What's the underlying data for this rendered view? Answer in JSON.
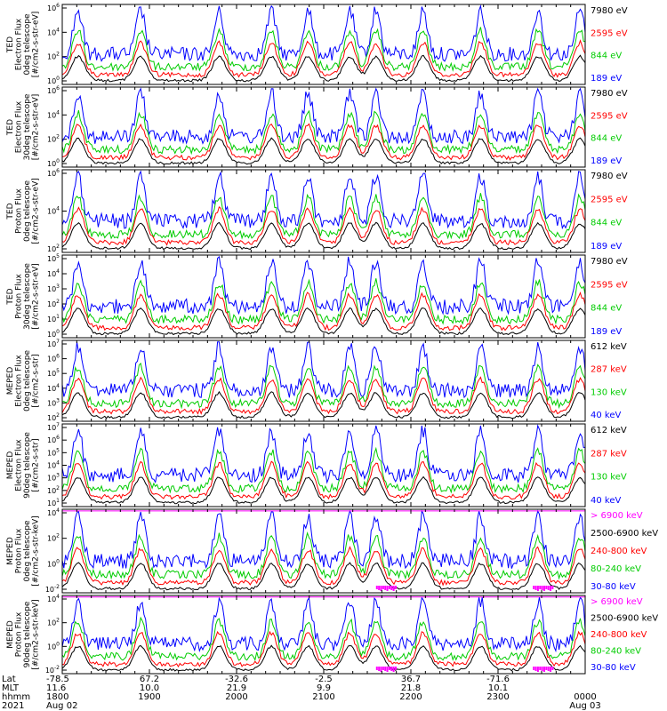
{
  "chart_data": [
    {
      "type": "line",
      "ylabel_lines": [
        "TED",
        "Electron Flux",
        "0deg telescope",
        "[#/cm2-s-str-eV]"
      ],
      "yscale": "log",
      "ytick_labels": [
        "10^6",
        "10^4",
        "10^2",
        "10^0"
      ],
      "legend": [
        {
          "label": "7980 eV",
          "color": "#000000"
        },
        {
          "label": "2595 eV",
          "color": "#ff0000"
        },
        {
          "label": "844 eV",
          "color": "#00cc00"
        },
        {
          "label": "189 eV",
          "color": "#0000ff"
        }
      ]
    },
    {
      "type": "line",
      "ylabel_lines": [
        "TED",
        "Electron Flux",
        "30deg telescope",
        "[#/cm2-s-str-eV]"
      ],
      "yscale": "log",
      "ytick_labels": [
        "10^6",
        "10^4",
        "10^2",
        "10^0"
      ],
      "legend": [
        {
          "label": "7980 eV",
          "color": "#000000"
        },
        {
          "label": "2595 eV",
          "color": "#ff0000"
        },
        {
          "label": "844 eV",
          "color": "#00cc00"
        },
        {
          "label": "189 eV",
          "color": "#0000ff"
        }
      ]
    },
    {
      "type": "line",
      "ylabel_lines": [
        "TED",
        "Proton Flux",
        "0deg telescope",
        "[#/cm2-s-str-eV]"
      ],
      "yscale": "log",
      "ytick_labels": [
        "10^6",
        "10^4",
        "10^2"
      ],
      "legend": [
        {
          "label": "7980 eV",
          "color": "#000000"
        },
        {
          "label": "2595 eV",
          "color": "#ff0000"
        },
        {
          "label": "844 eV",
          "color": "#00cc00"
        },
        {
          "label": "189 eV",
          "color": "#0000ff"
        }
      ]
    },
    {
      "type": "line",
      "ylabel_lines": [
        "TED",
        "Proton Flux",
        "30deg telescope",
        "[#/cm2-s-str-eV]"
      ],
      "yscale": "log",
      "ytick_labels": [
        "10^5",
        "10^4",
        "10^3",
        "10^2",
        "10^1",
        "10^0"
      ],
      "legend": [
        {
          "label": "7980 eV",
          "color": "#000000"
        },
        {
          "label": "2595 eV",
          "color": "#ff0000"
        },
        {
          "label": "844 eV",
          "color": "#00cc00"
        },
        {
          "label": "189 eV",
          "color": "#0000ff"
        }
      ]
    },
    {
      "type": "line",
      "ylabel_lines": [
        "MEPED",
        "Electron Flux",
        "0deg telescope",
        "[#/cm2-s-str]"
      ],
      "yscale": "log",
      "ytick_labels": [
        "10^7",
        "10^6",
        "10^5",
        "10^4",
        "10^3",
        "10^2"
      ],
      "legend": [
        {
          "label": "612 keV",
          "color": "#000000"
        },
        {
          "label": "287 keV",
          "color": "#ff0000"
        },
        {
          "label": "130 keV",
          "color": "#00cc00"
        },
        {
          "label": "40 keV",
          "color": "#0000ff"
        }
      ]
    },
    {
      "type": "line",
      "ylabel_lines": [
        "MEPED",
        "Electron Flux",
        "90deg telescope",
        "[#/cm2-s-str]"
      ],
      "yscale": "log",
      "ytick_labels": [
        "10^7",
        "10^6",
        "10^5",
        "10^4",
        "10^3",
        "10^2",
        "10^1"
      ],
      "legend": [
        {
          "label": "612 keV",
          "color": "#000000"
        },
        {
          "label": "287 keV",
          "color": "#ff0000"
        },
        {
          "label": "130 keV",
          "color": "#00cc00"
        },
        {
          "label": "40 keV",
          "color": "#0000ff"
        }
      ]
    },
    {
      "type": "line",
      "ylabel_lines": [
        "MEPED",
        "Proton Flux",
        "0deg telescope",
        "[#/cm2-s-str-keV]"
      ],
      "yscale": "log",
      "ytick_labels": [
        "10^4",
        "10^2",
        "10^0",
        "10^-2"
      ],
      "legend": [
        {
          "label": "> 6900 keV",
          "color": "#ff00ff"
        },
        {
          "label": "2500-6900 keV",
          "color": "#000000"
        },
        {
          "label": "240-800 keV",
          "color": "#ff0000"
        },
        {
          "label": "80-240 keV",
          "color": "#00cc00"
        },
        {
          "label": "30-80 keV",
          "color": "#0000ff"
        }
      ]
    },
    {
      "type": "line",
      "ylabel_lines": [
        "MEPED",
        "Proton Flux",
        "90deg telescope",
        "[#/cm2-s-str-keV]"
      ],
      "yscale": "log",
      "ytick_labels": [
        "10^4",
        "10^2",
        "10^0",
        "10^-2"
      ],
      "legend": [
        {
          "label": "> 6900 keV",
          "color": "#ff00ff"
        },
        {
          "label": "2500-6900 keV",
          "color": "#000000"
        },
        {
          "label": "240-800 keV",
          "color": "#ff0000"
        },
        {
          "label": "80-240 keV",
          "color": "#00cc00"
        },
        {
          "label": "30-80 keV",
          "color": "#0000ff"
        }
      ]
    }
  ],
  "footer": {
    "row_labels": [
      "Lat",
      "MLT",
      "hhmm",
      "2021"
    ],
    "columns": [
      {
        "lat": "-78.5",
        "mlt": "11.6",
        "hhmm": "1800",
        "date": "Aug 02"
      },
      {
        "lat": "67.2",
        "mlt": "10.0",
        "hhmm": "1900",
        "date": ""
      },
      {
        "lat": "-32.6",
        "mlt": "21.9",
        "hhmm": "2000",
        "date": ""
      },
      {
        "lat": "-2.5",
        "mlt": "9.9",
        "hhmm": "2100",
        "date": ""
      },
      {
        "lat": "36.7",
        "mlt": "21.8",
        "hhmm": "2200",
        "date": ""
      },
      {
        "lat": "-71.6",
        "mlt": "10.1",
        "hhmm": "2300",
        "date": ""
      },
      {
        "lat": "",
        "mlt": "",
        "hhmm": "0000",
        "date": "Aug 03"
      }
    ]
  },
  "colors": {
    "black": "#000000",
    "red": "#ff0000",
    "green": "#00cc00",
    "blue": "#0000ff",
    "magenta": "#ff00ff"
  }
}
